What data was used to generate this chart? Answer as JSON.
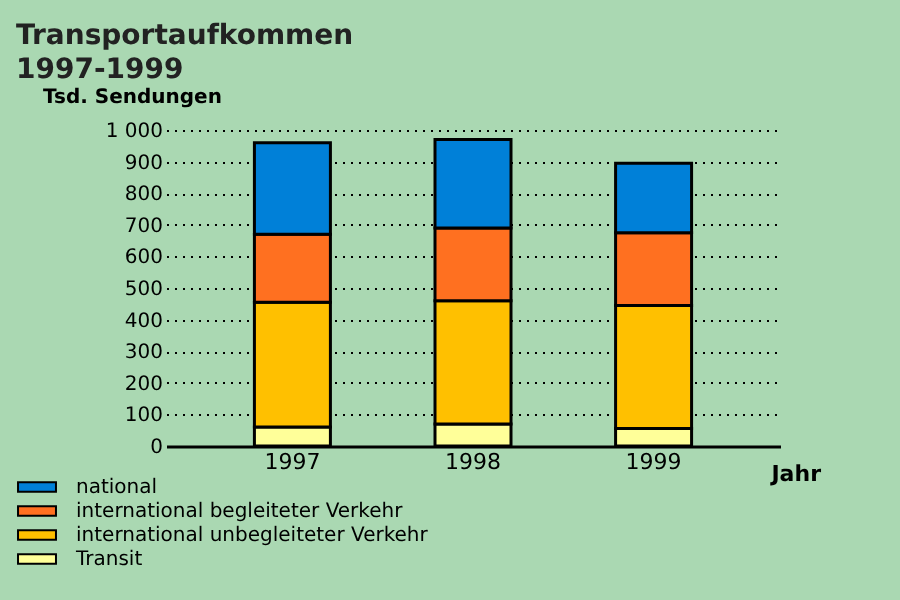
{
  "chart_data": {
    "type": "bar",
    "title": [
      "Transportaufkommen",
      "1997-1999"
    ],
    "ylabel": "Tsd. Sendungen",
    "xlabel": "Jahr",
    "categories": [
      "1997",
      "1998",
      "1999"
    ],
    "stacked": true,
    "series": [
      {
        "name": "Transit",
        "color": "#ffff99",
        "values": [
          60,
          70,
          55
        ]
      },
      {
        "name": "international unbegleiteter Verkehr",
        "color": "#ffc000",
        "values": [
          395,
          390,
          390
        ]
      },
      {
        "name": "international begleiteter Verkehr",
        "color": "#ff7020",
        "values": [
          215,
          230,
          230
        ]
      },
      {
        "name": "national",
        "color": "#0080d8",
        "values": [
          290,
          280,
          220
        ]
      }
    ],
    "ylim": [
      0,
      1000
    ],
    "yticks": [
      0,
      100,
      200,
      300,
      400,
      500,
      600,
      700,
      800,
      900,
      {
        "value": 1000,
        "label": "1 000"
      }
    ],
    "grid": "y",
    "legend": "bottom left"
  }
}
